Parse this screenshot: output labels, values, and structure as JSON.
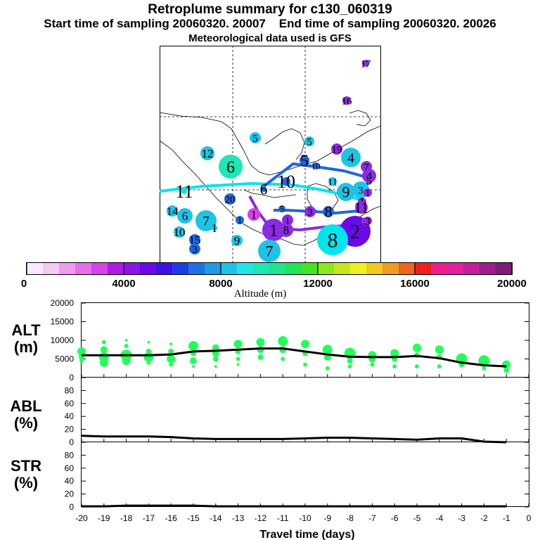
{
  "header": {
    "title": "Retroplume summary for c130_060319",
    "start_label": "Start time of sampling 20060320. 20007",
    "end_label": "End time of sampling 20060320. 20026",
    "met_label": "Meteorological data used is GFS"
  },
  "colors": {
    "trajectory_light": "#00e5ee",
    "trajectory_dark": "#1f66e0",
    "trajectory_purple": "#8a2be2",
    "alt_points": "#21ff5a",
    "line": "#000000"
  },
  "map": {
    "site_labels": [
      "17",
      "16",
      "5",
      "5",
      "12",
      "19",
      "4",
      "7",
      "5",
      "6",
      "10",
      "4",
      "5",
      "3",
      "6",
      "10",
      "11",
      "11",
      "9",
      "1",
      "20",
      "8",
      "1",
      "5",
      "3",
      "11",
      "14",
      "6",
      "7",
      "1",
      "1",
      "1",
      "8",
      "2",
      "5",
      "10",
      "9",
      "15",
      "3",
      "8",
      "7",
      "1",
      "1",
      "3"
    ]
  },
  "colorbar": {
    "colors": [
      "#fbe7fb",
      "#f5c8f5",
      "#ef9bef",
      "#e66ee6",
      "#d642e6",
      "#b01ae6",
      "#8c14e6",
      "#6a0ae6",
      "#3a14e6",
      "#1e3ce6",
      "#1e6ee6",
      "#1e9be6",
      "#1ec3e6",
      "#1ee6e6",
      "#1ee6b4",
      "#1ee68c",
      "#1ee65a",
      "#40e61e",
      "#8ce61e",
      "#c8e61e",
      "#f0f01e",
      "#f0c81e",
      "#f09b1e",
      "#f0641e",
      "#f01e1e",
      "#f01e8c",
      "#e61e9b",
      "#c81e9b",
      "#a01e8c",
      "#7a1e78"
    ],
    "ticks": [
      "0",
      "4000",
      "8000",
      "12000",
      "16000",
      "20000"
    ],
    "label": "Altitude (m)"
  },
  "panels": {
    "alt": {
      "label_line1": "ALT",
      "label_line2": "(m)",
      "yticks": [
        "20000",
        "15000",
        "10000",
        "5000",
        "0"
      ]
    },
    "abl": {
      "label_line1": "ABL",
      "label_line2": "(%)",
      "yticks": [
        "80",
        "60",
        "40",
        "20",
        "0"
      ]
    },
    "str": {
      "label_line1": "STR",
      "label_line2": "(%)",
      "yticks": [
        "80",
        "60",
        "40",
        "20",
        "0"
      ]
    }
  },
  "xaxis": {
    "ticks": [
      "-20",
      "-19",
      "-18",
      "-17",
      "-16",
      "-15",
      "-14",
      "-13",
      "-12",
      "-11",
      "-10",
      "-9",
      "-8",
      "-7",
      "-6",
      "-5",
      "-4",
      "-3",
      "-2",
      "-1",
      "0"
    ],
    "label": "Travel time (days)"
  },
  "chart_data": {
    "type": "line",
    "x": [
      -20,
      -19,
      -18,
      -17,
      -16,
      -15,
      -14,
      -13,
      -12,
      -11,
      -10,
      -9,
      -8,
      -7,
      -6,
      -5,
      -4,
      -3,
      -2,
      -1
    ],
    "xlabel": "Travel time (days)",
    "xlim": [
      -20,
      0
    ],
    "series": [
      {
        "name": "ALT mean (m)",
        "values": [
          6000,
          6000,
          6000,
          6000,
          6200,
          7000,
          7200,
          7500,
          7800,
          7800,
          7000,
          6200,
          5600,
          5500,
          5500,
          5800,
          5200,
          4000,
          3300,
          3000
        ],
        "ylim": [
          0,
          20000
        ]
      },
      {
        "name": "ABL (%)",
        "values": [
          10,
          9,
          9,
          9,
          8,
          6,
          5,
          5,
          5,
          5,
          6,
          7,
          7,
          6,
          5,
          4,
          6,
          6,
          1,
          0
        ],
        "ylim": [
          0,
          100
        ]
      },
      {
        "name": "STR (%)",
        "values": [
          1,
          1,
          2,
          2,
          2,
          2,
          1,
          1,
          1,
          1,
          1,
          1,
          1,
          1,
          1,
          1,
          1,
          1,
          1,
          1
        ],
        "ylim": [
          0,
          100
        ]
      }
    ],
    "alt_clusters": [
      [
        {
          "y": 7000,
          "r": 6
        },
        {
          "y": 5500,
          "r": 4
        },
        {
          "y": 4500,
          "r": 3
        }
      ],
      [
        {
          "y": 9500,
          "r": 3
        },
        {
          "y": 7500,
          "r": 5
        },
        {
          "y": 5500,
          "r": 7
        },
        {
          "y": 4000,
          "r": 6
        }
      ],
      [
        {
          "y": 10000,
          "r": 2
        },
        {
          "y": 8500,
          "r": 3
        },
        {
          "y": 6000,
          "r": 8
        },
        {
          "y": 4500,
          "r": 6
        }
      ],
      [
        {
          "y": 9500,
          "r": 2
        },
        {
          "y": 7000,
          "r": 4
        },
        {
          "y": 5500,
          "r": 7
        },
        {
          "y": 4000,
          "r": 3
        }
      ],
      [
        {
          "y": 9000,
          "r": 2
        },
        {
          "y": 7000,
          "r": 4
        },
        {
          "y": 5000,
          "r": 6
        },
        {
          "y": 3500,
          "r": 3
        }
      ],
      [
        {
          "y": 8500,
          "r": 7
        },
        {
          "y": 6500,
          "r": 4
        },
        {
          "y": 4500,
          "r": 5
        },
        {
          "y": 3000,
          "r": 2
        }
      ],
      [
        {
          "y": 8000,
          "r": 5
        },
        {
          "y": 6500,
          "r": 5
        },
        {
          "y": 5000,
          "r": 4
        },
        {
          "y": 3000,
          "r": 2
        }
      ],
      [
        {
          "y": 9000,
          "r": 6
        },
        {
          "y": 7000,
          "r": 4
        },
        {
          "y": 5000,
          "r": 3
        },
        {
          "y": 3500,
          "r": 2
        }
      ],
      [
        {
          "y": 9500,
          "r": 6
        },
        {
          "y": 7500,
          "r": 5
        },
        {
          "y": 5500,
          "r": 4
        }
      ],
      [
        {
          "y": 9800,
          "r": 7
        },
        {
          "y": 7500,
          "r": 5
        },
        {
          "y": 5000,
          "r": 3
        }
      ],
      [
        {
          "y": 9000,
          "r": 6
        },
        {
          "y": 6500,
          "r": 4
        },
        {
          "y": 3500,
          "r": 3
        }
      ],
      [
        {
          "y": 7500,
          "r": 7
        },
        {
          "y": 5500,
          "r": 5
        },
        {
          "y": 2500,
          "r": 3
        }
      ],
      [
        {
          "y": 6500,
          "r": 8
        },
        {
          "y": 4500,
          "r": 4
        },
        {
          "y": 3000,
          "r": 3
        }
      ],
      [
        {
          "y": 6000,
          "r": 6
        },
        {
          "y": 5000,
          "r": 5
        },
        {
          "y": 3500,
          "r": 3
        }
      ],
      [
        {
          "y": 6500,
          "r": 6
        },
        {
          "y": 5000,
          "r": 4
        },
        {
          "y": 3000,
          "r": 3
        }
      ],
      [
        {
          "y": 8000,
          "r": 6
        },
        {
          "y": 6000,
          "r": 4
        },
        {
          "y": 3000,
          "r": 3
        }
      ],
      [
        {
          "y": 7500,
          "r": 6
        },
        {
          "y": 5500,
          "r": 4
        },
        {
          "y": 3000,
          "r": 3
        }
      ],
      [
        {
          "y": 5000,
          "r": 8
        },
        {
          "y": 3500,
          "r": 4
        }
      ],
      [
        {
          "y": 4500,
          "r": 8
        },
        {
          "y": 2500,
          "r": 3
        }
      ],
      [
        {
          "y": 3500,
          "r": 6
        },
        {
          "y": 2000,
          "r": 4
        }
      ]
    ]
  }
}
